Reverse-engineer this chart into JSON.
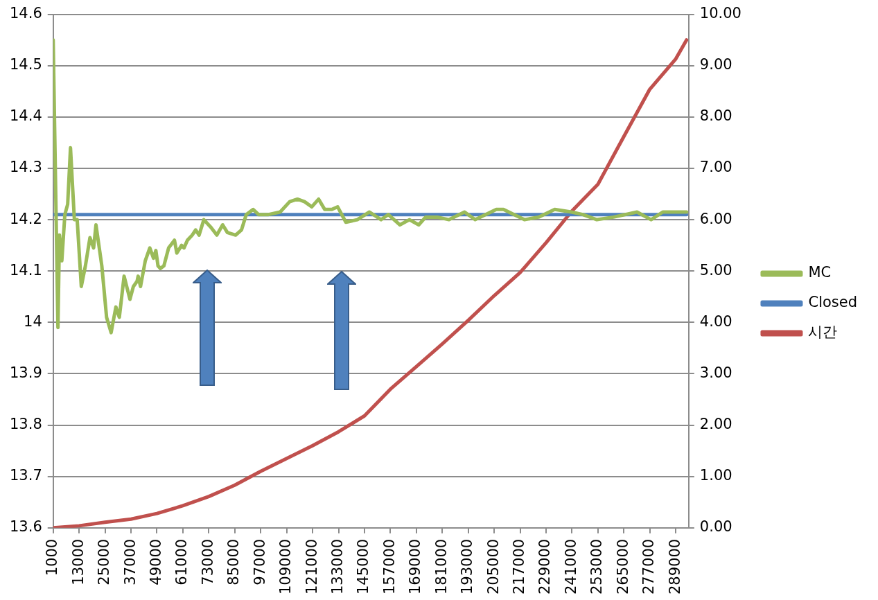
{
  "chart_data": {
    "type": "line",
    "xlim": [
      1000,
      295000
    ],
    "xticks": [
      1000,
      13000,
      25000,
      37000,
      49000,
      61000,
      73000,
      85000,
      97000,
      109000,
      121000,
      133000,
      145000,
      157000,
      169000,
      181000,
      193000,
      205000,
      217000,
      229000,
      241000,
      253000,
      265000,
      277000,
      289000
    ],
    "ylim": [
      13.6,
      14.6
    ],
    "yticks": [
      13.6,
      13.7,
      13.8,
      13.9,
      14,
      14.1,
      14.2,
      14.3,
      14.4,
      14.5,
      14.6
    ],
    "y2lim": [
      0,
      10
    ],
    "y2ticks": [
      {
        "value": 0,
        "label": "0.00"
      },
      {
        "value": 1,
        "label": "1.00"
      },
      {
        "value": 2,
        "label": "2.00"
      },
      {
        "value": 3,
        "label": "3.00"
      },
      {
        "value": 4,
        "label": "4.00"
      },
      {
        "value": 5,
        "label": "5.00"
      },
      {
        "value": 6,
        "label": "6.00"
      },
      {
        "value": 7,
        "label": "7.00"
      },
      {
        "value": 8,
        "label": "8.00"
      },
      {
        "value": 9,
        "label": "9.00"
      },
      {
        "value": 10,
        "label": "10.00"
      }
    ],
    "grid": "y",
    "legend": "right",
    "marker": "none",
    "line_style": "solid",
    "series": [
      {
        "name": "MC",
        "color": "#9bbb59",
        "x": [
          1000,
          3200,
          3900,
          5000,
          6400,
          7700,
          9000,
          10800,
          12100,
          14000,
          15900,
          18000,
          19700,
          20800,
          23500,
          25700,
          27800,
          30000,
          31600,
          33800,
          36500,
          38100,
          39800,
          40300,
          41400,
          43600,
          45700,
          47400,
          48500,
          49500,
          50600,
          52200,
          54400,
          57100,
          58200,
          60400,
          61500,
          63100,
          65300,
          66900,
          68500,
          70700,
          74000,
          76700,
          79400,
          81600,
          85400,
          88100,
          90300,
          93500,
          96000,
          100600,
          106000,
          110400,
          114000,
          117300,
          120600,
          123800,
          126600,
          129900,
          132600,
          136400,
          141700,
          147300,
          152700,
          156000,
          161400,
          165800,
          170100,
          173300,
          178800,
          184100,
          191300,
          196200,
          206000,
          209300,
          219000,
          225500,
          233000,
          240700,
          246000,
          252500,
          260200,
          271100,
          277600,
          283000,
          294000
        ],
        "values": [
          14.55,
          13.99,
          14.17,
          14.12,
          14.21,
          14.23,
          14.34,
          14.2,
          14.2,
          14.07,
          14.11,
          14.165,
          14.145,
          14.19,
          14.11,
          14.01,
          13.98,
          14.03,
          14.01,
          14.09,
          14.045,
          14.07,
          14.08,
          14.09,
          14.07,
          14.12,
          14.145,
          14.125,
          14.14,
          14.11,
          14.105,
          14.11,
          14.145,
          14.16,
          14.135,
          14.15,
          14.145,
          14.16,
          14.17,
          14.18,
          14.17,
          14.2,
          14.185,
          14.17,
          14.19,
          14.175,
          14.17,
          14.18,
          14.21,
          14.22,
          14.21,
          14.21,
          14.215,
          14.235,
          14.24,
          14.235,
          14.225,
          14.24,
          14.22,
          14.22,
          14.225,
          14.195,
          14.2,
          14.215,
          14.2,
          14.21,
          14.19,
          14.2,
          14.19,
          14.205,
          14.205,
          14.2,
          14.215,
          14.2,
          14.22,
          14.22,
          14.2,
          14.205,
          14.22,
          14.215,
          14.21,
          14.2,
          14.205,
          14.215,
          14.2,
          14.215,
          14.215
        ]
      },
      {
        "name": "Closed",
        "color": "#4f81bd",
        "x": [
          1000,
          294000
        ],
        "values": [
          14.21,
          14.21
        ]
      },
      {
        "name": "시간",
        "color": "#c0504d",
        "axis": "y2",
        "x": [
          1000,
          13000,
          25000,
          37000,
          49000,
          61000,
          73000,
          85000,
          97000,
          109000,
          121000,
          133000,
          145000,
          157000,
          169000,
          181000,
          193000,
          205000,
          217000,
          229000,
          241000,
          253000,
          265000,
          277000,
          289000,
          294000
        ],
        "values": [
          0,
          0.04,
          0.11,
          0.17,
          0.28,
          0.43,
          0.61,
          0.83,
          1.1,
          1.35,
          1.6,
          1.87,
          2.18,
          2.7,
          3.14,
          3.58,
          4.04,
          4.52,
          4.97,
          5.55,
          6.17,
          6.69,
          7.62,
          8.54,
          9.13,
          9.5
        ]
      }
    ]
  }
}
